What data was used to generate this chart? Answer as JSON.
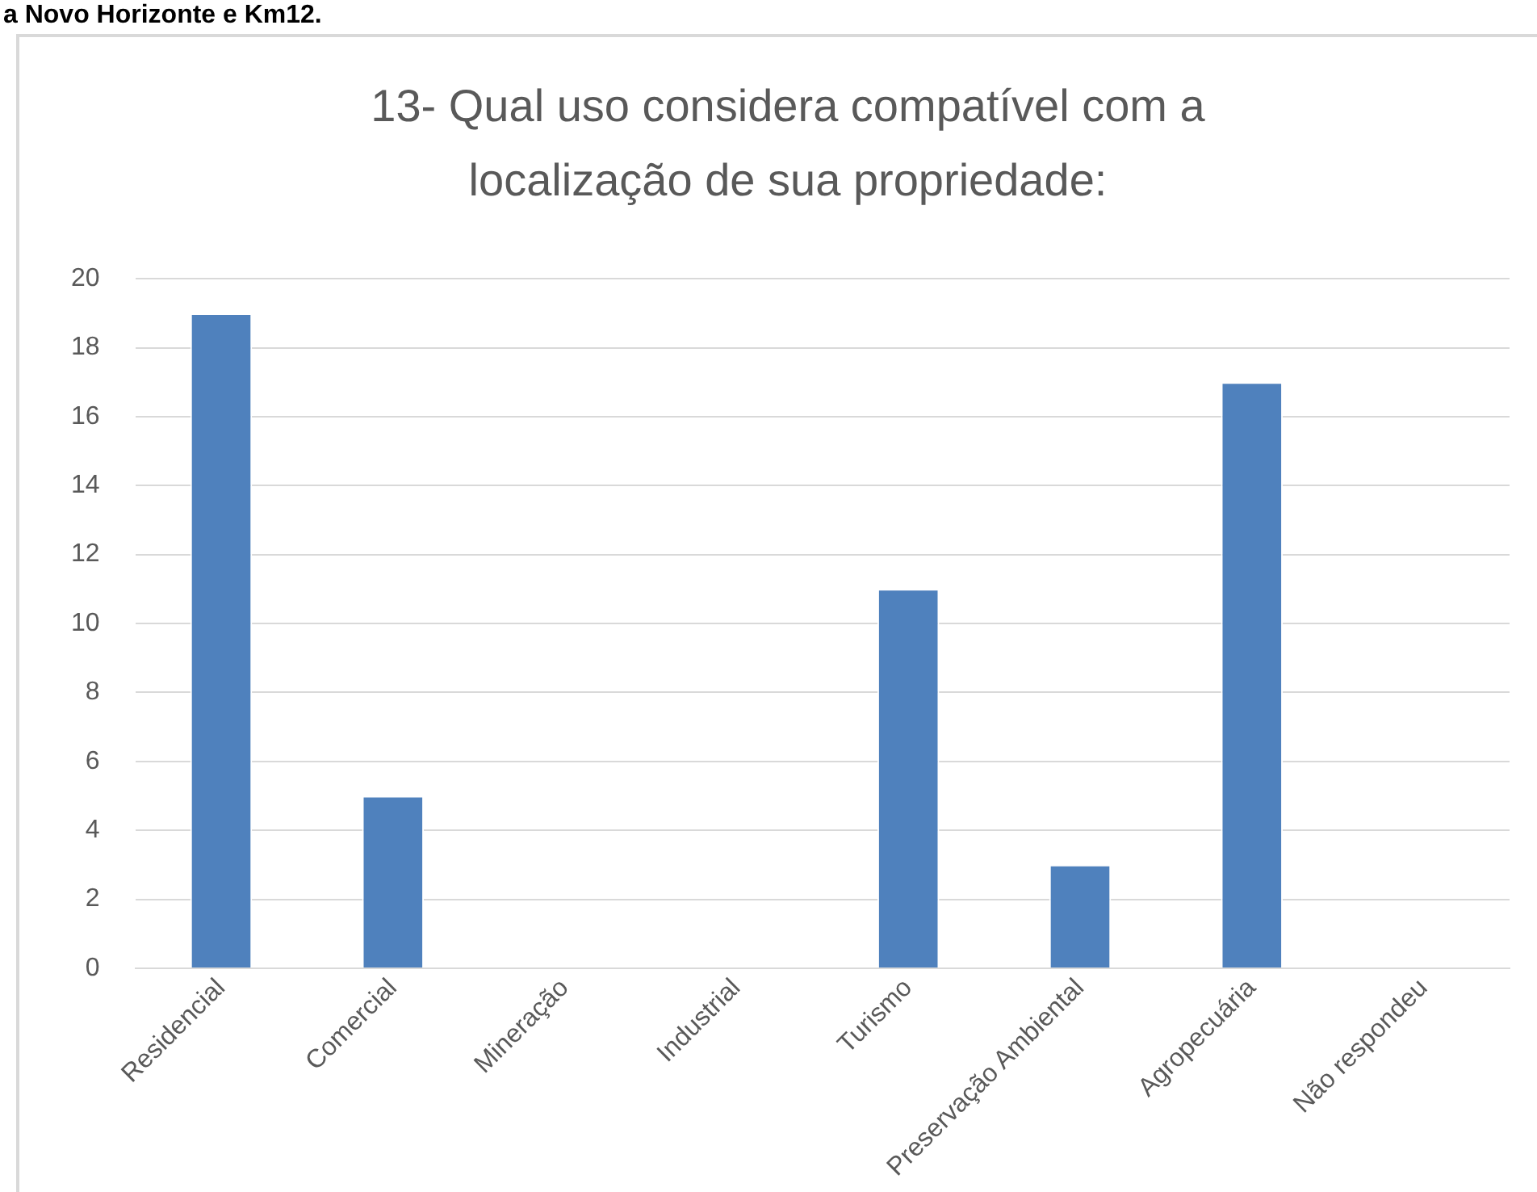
{
  "chart_data": {
    "type": "bar",
    "title": "13- Qual uso considera compatível com a localização de sua propriedade:",
    "annotations": [
      "a Novo Horizonte e Km12."
    ],
    "categories": [
      "Residencial",
      "Comercial",
      "Mineração",
      "Industrial",
      "Turismo",
      "Preservação Ambiental",
      "Agropecuária",
      "Não respondeu"
    ],
    "values": [
      19,
      5,
      0,
      0,
      11,
      3,
      17,
      0
    ],
    "color": "#4f81bd",
    "ylim": [
      0,
      20
    ],
    "yticks": [
      0,
      2,
      4,
      6,
      8,
      10,
      12,
      14,
      16,
      18,
      20
    ],
    "grid": "y",
    "legend": false
  }
}
